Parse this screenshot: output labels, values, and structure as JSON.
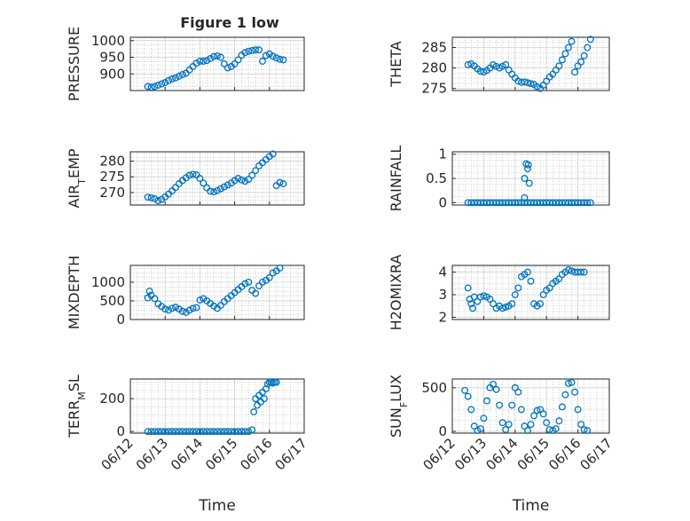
{
  "title": "Figure 1 low",
  "chart_data": [
    {
      "type": "scatter",
      "ylabel": "PRESSURE",
      "xlabel": "",
      "xlim": [
        0,
        5
      ],
      "ylim": [
        850,
        1010
      ],
      "yticks": [
        900,
        950,
        1000
      ],
      "ytick_labels": [
        "900",
        "950",
        "1000"
      ],
      "x": [
        0.5,
        0.6,
        0.7,
        0.8,
        0.9,
        1.0,
        1.1,
        1.2,
        1.3,
        1.4,
        1.5,
        1.6,
        1.7,
        1.8,
        1.9,
        2.0,
        2.1,
        2.2,
        2.3,
        2.4,
        2.5,
        2.6,
        2.7,
        2.8,
        2.9,
        3.0,
        3.1,
        3.2,
        3.3,
        3.4,
        3.5,
        3.6,
        3.7,
        3.8,
        3.9,
        4.0,
        4.1,
        4.2,
        4.3,
        4.4
      ],
      "y": [
        862,
        860,
        862,
        866,
        870,
        874,
        880,
        885,
        888,
        893,
        898,
        902,
        912,
        922,
        932,
        938,
        938,
        940,
        946,
        952,
        954,
        950,
        930,
        918,
        922,
        930,
        942,
        956,
        964,
        968,
        970,
        972,
        972,
        938,
        955,
        960,
        953,
        948,
        944,
        942
      ]
    },
    {
      "type": "scatter",
      "ylabel": "THETA",
      "xlabel": "",
      "xlim": [
        0,
        5
      ],
      "ylim": [
        274.5,
        287.5
      ],
      "yticks": [
        275,
        280,
        285
      ],
      "ytick_labels": [
        "275",
        "280",
        "285"
      ],
      "x": [
        0.5,
        0.6,
        0.7,
        0.8,
        0.9,
        1.0,
        1.1,
        1.2,
        1.3,
        1.4,
        1.5,
        1.6,
        1.7,
        1.8,
        1.9,
        2.0,
        2.1,
        2.2,
        2.3,
        2.4,
        2.5,
        2.6,
        2.7,
        2.8,
        2.9,
        3.0,
        3.1,
        3.2,
        3.3,
        3.4,
        3.5,
        3.6,
        3.7,
        3.8,
        3.9,
        4.0,
        4.1,
        4.2,
        4.3,
        4.4
      ],
      "y": [
        280.8,
        281,
        280.5,
        279.8,
        279.2,
        279,
        279.4,
        280,
        280.8,
        280.4,
        280,
        280.4,
        280.8,
        279.5,
        278.5,
        277.6,
        276.8,
        276.5,
        276.6,
        276.4,
        276.2,
        276,
        275.4,
        275,
        275.8,
        276.8,
        277.8,
        278.5,
        279.5,
        280.5,
        282,
        283.5,
        285,
        286.5,
        279,
        280.5,
        281.5,
        283,
        285,
        287
      ]
    },
    {
      "type": "scatter",
      "ylabel": "AIR_TEMP",
      "xlabel": "",
      "xlim": [
        0,
        5
      ],
      "ylim": [
        266,
        283
      ],
      "yticks": [
        270,
        275,
        280
      ],
      "ytick_labels": [
        "270",
        "275",
        "280"
      ],
      "x": [
        0.5,
        0.6,
        0.7,
        0.8,
        0.9,
        1.0,
        1.1,
        1.2,
        1.3,
        1.4,
        1.5,
        1.6,
        1.7,
        1.8,
        1.9,
        2.0,
        2.1,
        2.2,
        2.3,
        2.4,
        2.5,
        2.6,
        2.7,
        2.8,
        2.9,
        3.0,
        3.1,
        3.2,
        3.3,
        3.4,
        3.5,
        3.6,
        3.7,
        3.8,
        3.9,
        4.0,
        4.1,
        4.2,
        4.3,
        4.4
      ],
      "y": [
        268.5,
        268.3,
        268,
        267.4,
        267.8,
        268.6,
        269.5,
        270.5,
        271.6,
        272.8,
        273.8,
        274.7,
        275.5,
        275.8,
        275.6,
        274.5,
        273,
        271.5,
        270.4,
        270.2,
        270.6,
        271.2,
        271.8,
        272.4,
        273,
        273.8,
        274.5,
        274,
        273.6,
        274.2,
        275.5,
        277,
        278.5,
        279.5,
        280.5,
        281.5,
        282.3,
        272.2,
        273.2,
        272.8
      ]
    },
    {
      "type": "scatter",
      "ylabel": "RAINFALL",
      "xlabel": "",
      "xlim": [
        0,
        5
      ],
      "ylim": [
        -0.05,
        1.05
      ],
      "yticks": [
        0,
        0.5,
        1
      ],
      "ytick_labels": [
        "0",
        "0.5",
        "1"
      ],
      "x": [
        0.5,
        0.6,
        0.7,
        0.8,
        0.9,
        1.0,
        1.1,
        1.2,
        1.3,
        1.4,
        1.5,
        1.6,
        1.7,
        1.8,
        1.9,
        2.0,
        2.1,
        2.2,
        2.3,
        2.4,
        2.5,
        2.6,
        2.7,
        2.8,
        2.9,
        3.0,
        3.1,
        3.2,
        3.3,
        3.4,
        3.5,
        3.6,
        3.7,
        3.8,
        3.9,
        4.0,
        4.1,
        4.2,
        4.3,
        4.4,
        2.3,
        2.35,
        2.4,
        2.42,
        2.45,
        2.3
      ],
      "y": [
        0,
        0,
        0,
        0,
        0,
        0,
        0,
        0,
        0,
        0,
        0,
        0,
        0,
        0,
        0,
        0,
        0,
        0,
        0,
        0,
        0,
        0,
        0,
        0,
        0,
        0,
        0,
        0,
        0,
        0,
        0,
        0,
        0,
        0,
        0,
        0,
        0,
        0,
        0,
        0,
        0.5,
        0.8,
        0.7,
        0.78,
        0.4,
        0.1
      ]
    },
    {
      "type": "scatter",
      "ylabel": "MIXDEPTH",
      "xlabel": "",
      "xlim": [
        0,
        5
      ],
      "ylim": [
        0,
        1450
      ],
      "yticks": [
        0,
        500,
        1000
      ],
      "ytick_labels": [
        "0",
        "500",
        "1000"
      ],
      "x": [
        0.5,
        0.55,
        0.6,
        0.7,
        0.8,
        0.9,
        1.0,
        1.1,
        1.2,
        1.3,
        1.4,
        1.5,
        1.6,
        1.7,
        1.8,
        1.9,
        2.0,
        2.1,
        2.2,
        2.3,
        2.4,
        2.5,
        2.6,
        2.7,
        2.8,
        2.9,
        3.0,
        3.1,
        3.2,
        3.3,
        3.4,
        3.5,
        3.6,
        3.7,
        3.8,
        3.9,
        4.0,
        4.1,
        4.2,
        4.3
      ],
      "y": [
        580,
        760,
        650,
        560,
        420,
        350,
        280,
        250,
        300,
        330,
        280,
        220,
        190,
        250,
        300,
        320,
        520,
        560,
        500,
        430,
        360,
        300,
        380,
        480,
        560,
        640,
        720,
        800,
        880,
        960,
        1000,
        780,
        700,
        900,
        1000,
        1050,
        1120,
        1250,
        1300,
        1380
      ]
    },
    {
      "type": "scatter",
      "ylabel": "H2OMIXRA",
      "xlabel": "",
      "xlim": [
        0,
        5
      ],
      "ylim": [
        1.9,
        4.3
      ],
      "yticks": [
        2,
        3,
        4
      ],
      "ytick_labels": [
        "2",
        "3",
        "4"
      ],
      "x": [
        0.5,
        0.55,
        0.6,
        0.65,
        0.7,
        0.8,
        0.9,
        1.0,
        1.1,
        1.2,
        1.3,
        1.4,
        1.5,
        1.6,
        1.7,
        1.8,
        1.9,
        2.0,
        2.1,
        2.2,
        2.3,
        2.4,
        2.5,
        2.6,
        2.7,
        2.8,
        2.9,
        3.0,
        3.1,
        3.2,
        3.3,
        3.4,
        3.5,
        3.6,
        3.7,
        3.8,
        3.9,
        4.0,
        4.1,
        4.2
      ],
      "y": [
        3.3,
        2.8,
        2.6,
        2.4,
        2.9,
        2.7,
        2.9,
        2.95,
        2.9,
        2.8,
        2.6,
        2.4,
        2.5,
        2.4,
        2.45,
        2.5,
        2.6,
        3.0,
        3.3,
        3.8,
        3.9,
        4.0,
        3.6,
        2.6,
        2.5,
        2.6,
        3.0,
        3.2,
        3.3,
        3.5,
        3.6,
        3.7,
        3.9,
        4.0,
        4.1,
        4.05,
        4.0,
        4.0,
        4.0,
        4.0
      ]
    },
    {
      "type": "scatter",
      "ylabel": "TERR_MSL",
      "xlabel": "Time",
      "xlim": [
        0,
        5
      ],
      "ylim": [
        -10,
        320
      ],
      "yticks": [
        0,
        200
      ],
      "ytick_labels": [
        "0",
        "200"
      ],
      "xticks": [
        0,
        1,
        2,
        3,
        4,
        5
      ],
      "xtick_labels": [
        "06/12",
        "06/13",
        "06/14",
        "06/15",
        "06/16",
        "06/17"
      ],
      "x": [
        0.5,
        0.6,
        0.7,
        0.8,
        0.9,
        1.0,
        1.1,
        1.2,
        1.3,
        1.4,
        1.5,
        1.6,
        1.7,
        1.8,
        1.9,
        2.0,
        2.1,
        2.2,
        2.3,
        2.4,
        2.5,
        2.6,
        2.7,
        2.8,
        2.9,
        3.0,
        3.1,
        3.2,
        3.3,
        3.4,
        3.5,
        3.55,
        3.6,
        3.65,
        3.7,
        3.75,
        3.8,
        3.85,
        3.9,
        3.95,
        4.0,
        4.05,
        4.1,
        4.15,
        4.2
      ],
      "y": [
        0,
        0,
        0,
        0,
        0,
        0,
        0,
        0,
        0,
        0,
        0,
        0,
        0,
        0,
        0,
        0,
        0,
        0,
        0,
        0,
        0,
        0,
        0,
        0,
        0,
        0,
        0,
        0,
        0,
        0,
        10,
        120,
        200,
        160,
        220,
        180,
        240,
        200,
        260,
        290,
        300,
        300,
        295,
        300,
        300
      ]
    },
    {
      "type": "scatter",
      "ylabel": "SUN_FLUX",
      "xlabel": "Time",
      "xlim": [
        0,
        5
      ],
      "ylim": [
        -20,
        600
      ],
      "yticks": [
        0,
        500
      ],
      "ytick_labels": [
        "0",
        "500"
      ],
      "xticks": [
        0,
        1,
        2,
        3,
        4,
        5
      ],
      "xtick_labels": [
        "06/12",
        "06/13",
        "06/14",
        "06/15",
        "06/16",
        "06/17"
      ],
      "x": [
        0.4,
        0.5,
        0.6,
        0.7,
        0.8,
        0.9,
        1.0,
        1.1,
        1.2,
        1.3,
        1.4,
        1.5,
        1.6,
        1.7,
        1.8,
        1.9,
        2.0,
        2.1,
        2.2,
        2.3,
        2.4,
        2.5,
        2.6,
        2.7,
        2.8,
        2.9,
        3.0,
        3.1,
        3.2,
        3.3,
        3.4,
        3.5,
        3.6,
        3.7,
        3.8,
        3.9,
        4.0,
        4.1,
        4.2,
        4.3
      ],
      "y": [
        470,
        400,
        250,
        60,
        10,
        30,
        150,
        350,
        500,
        540,
        480,
        300,
        100,
        20,
        80,
        300,
        500,
        450,
        250,
        60,
        10,
        80,
        180,
        240,
        250,
        200,
        100,
        20,
        10,
        30,
        120,
        280,
        420,
        550,
        560,
        450,
        250,
        80,
        20,
        10
      ]
    }
  ]
}
